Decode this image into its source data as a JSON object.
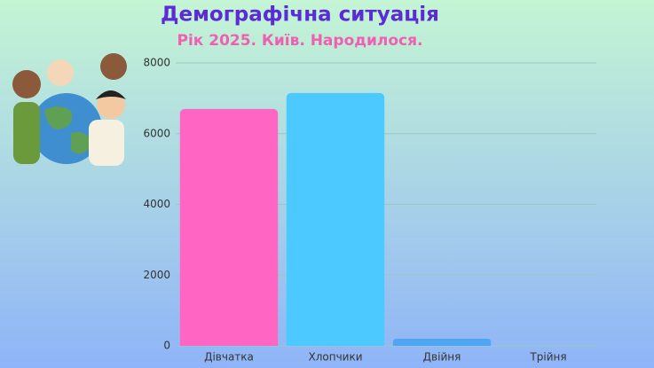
{
  "chart_data": {
    "type": "bar",
    "title": "Демографічна ситуація",
    "subtitle": "Рік 2025. Київ. Народилося.",
    "categories": [
      "Дівчатка",
      "Хлопчики",
      "Двійня",
      "Трійня"
    ],
    "values": [
      6700,
      7150,
      200,
      0
    ],
    "colors": [
      "#ff66c4",
      "#4cc9fe",
      "#4ea6f2",
      "#4ea6f2"
    ],
    "ylim": [
      0,
      8000
    ],
    "yticks": [
      0,
      2000,
      4000,
      6000,
      8000
    ],
    "grid": true
  }
}
